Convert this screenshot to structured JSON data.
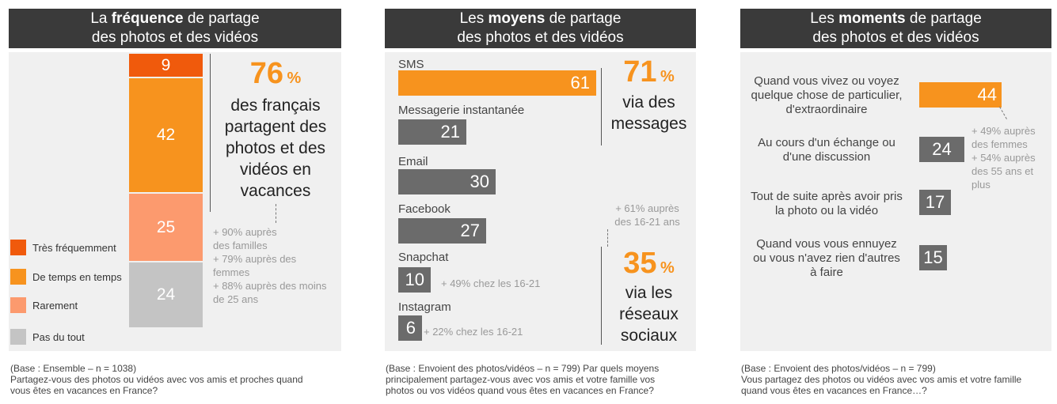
{
  "colors": {
    "dark_orange": "#f05a0c",
    "orange": "#f7931e",
    "light_orange": "#fc9a6e",
    "gray": "#c4c4c4",
    "dark_gray": "#6b6b6b",
    "header": "#3a3a3a"
  },
  "panel1": {
    "title_pre": "La ",
    "title_bold": "fréquence",
    "title_post": " de partage",
    "title_line2": "des  photos et des vidéos",
    "big_value": "76",
    "big_unit": "%",
    "statement": [
      "des français",
      "partagent des",
      "photos et des",
      "vidéos en",
      "vacances"
    ],
    "notes": [
      "+ 90% auprès",
      "des familles",
      "+ 79% auprès des",
      "femmes",
      "+ 88% auprès des moins",
      "de 25 ans"
    ],
    "footer": [
      "(Base : Ensemble – n = 1038)",
      "Partagez-vous des photos ou vidéos avec vos amis et proches quand",
      "vous êtes en vacances en France?"
    ]
  },
  "panel2": {
    "title_pre": "Les ",
    "title_bold": "moyens",
    "title_post": " de partage",
    "title_line2": "des  photos et des vidéos",
    "top_value": "71",
    "top_unit": "%",
    "top_text": [
      "via des",
      "messages"
    ],
    "mid_note": [
      "+ 61% auprès",
      "des 16-21 ans"
    ],
    "bottom_value": "35",
    "bottom_unit": "%",
    "bottom_text": [
      "via les",
      "réseaux",
      "sociaux"
    ],
    "snapchat_note": "+ 49% chez les 16-21",
    "instagram_note": "+ 22% chez les 16-21",
    "footer": [
      "(Base : Envoient des photos/vidéos – n = 799) Par quels moyens",
      "principalement partagez-vous avec vos amis et votre famille vos",
      "photos ou vos vidéos quand vous êtes en vacances en France?"
    ]
  },
  "panel3": {
    "title_pre": "Les ",
    "title_bold": "moments",
    "title_post": " de partage",
    "title_line2": "des  photos et des vidéos",
    "notes": [
      "+ 49% auprès",
      "des femmes",
      "+ 54% auprès",
      "des 55 ans et",
      "plus"
    ],
    "footer": [
      "(Base : Envoient des photos/vidéos – n = 799)",
      "Vous partagez des photos ou vidéos avec vos amis et votre famille",
      "quand vous êtes en vacances en France…?"
    ]
  },
  "chart_data": [
    {
      "type": "bar",
      "stacked": true,
      "categories": [
        "Très fréquemment",
        "De temps en temps",
        "Rarement",
        "Pas du tout"
      ],
      "values": [
        9,
        42,
        25,
        24
      ],
      "legend_position": "bottom-left"
    },
    {
      "type": "bar",
      "orientation": "horizontal",
      "categories": [
        "SMS",
        "Messagerie instantanée",
        "Email",
        "Facebook",
        "Snapchat",
        "Instagram"
      ],
      "values": [
        61,
        21,
        30,
        27,
        10,
        6
      ]
    },
    {
      "type": "bar",
      "orientation": "horizontal",
      "categories": [
        [
          "Quand vous vivez ou voyez",
          "quelque chose de particulier,",
          "d'extraordinaire"
        ],
        [
          "Au cours d'un échange ou",
          "d'une discussion"
        ],
        [
          "Tout de suite après avoir pris",
          "la photo ou la vidéo"
        ],
        [
          "Quand vous vous ennuyez",
          "ou vous n'avez rien d'autres",
          "à faire"
        ]
      ],
      "values": [
        44,
        24,
        17,
        15
      ]
    }
  ]
}
